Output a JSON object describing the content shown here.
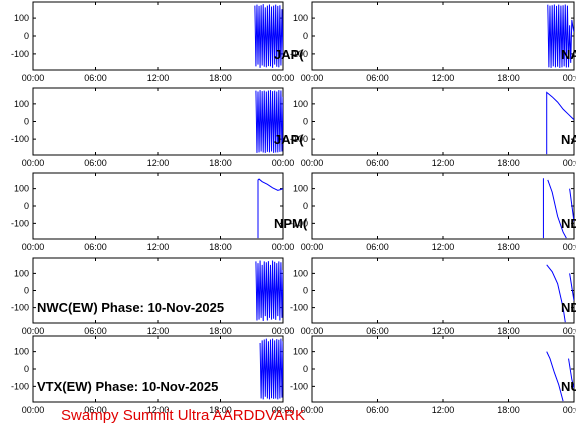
{
  "footer": "Swampy Summit Ultra AARDDVARK",
  "chart_data": [
    {
      "type": "line",
      "title": "JAP(",
      "color": "#0000ff",
      "xlim": [
        0,
        24
      ],
      "ylim": [
        -190,
        190
      ],
      "xticks": [
        {
          "value": 0,
          "label": "00:00"
        },
        {
          "value": 6,
          "label": "06:00"
        },
        {
          "value": 12,
          "label": "12:00"
        },
        {
          "value": 18,
          "label": "18:00"
        },
        {
          "value": 24,
          "label": "00:00"
        }
      ],
      "yticks": [
        -100,
        0,
        100
      ],
      "x": [
        21.3,
        21.4,
        21.5,
        21.6,
        21.7,
        21.8,
        21.9,
        22.0,
        22.1,
        22.2,
        22.3,
        22.4,
        22.5,
        22.6,
        22.7,
        22.8,
        22.9,
        23.0,
        23.1,
        23.2,
        23.3,
        23.4,
        23.5,
        23.6,
        23.7,
        23.8,
        23.9,
        24.0
      ],
      "values": [
        170,
        -170,
        175,
        -160,
        168,
        -178,
        172,
        -165,
        178,
        -172,
        160,
        -175,
        170,
        -168,
        176,
        -170,
        165,
        -178,
        170,
        -160,
        175,
        -172,
        168,
        -175,
        172,
        -165,
        150,
        -120
      ]
    },
    {
      "type": "line",
      "title": "NA",
      "color": "#0000ff",
      "xlim": [
        0,
        24
      ],
      "ylim": [
        -190,
        190
      ],
      "xticks": [
        {
          "value": 0,
          "label": "00:00"
        },
        {
          "value": 6,
          "label": "06:00"
        },
        {
          "value": 12,
          "label": "12:00"
        },
        {
          "value": 18,
          "label": "18:00"
        },
        {
          "value": 24,
          "label": "00:00"
        }
      ],
      "yticks": [
        -100,
        0,
        100
      ],
      "x": [
        21.6,
        21.7,
        21.8,
        21.9,
        22.0,
        22.1,
        22.2,
        22.3,
        22.4,
        22.5,
        22.6,
        22.7,
        22.8,
        22.9,
        23.0,
        23.1,
        23.2,
        23.3,
        23.4,
        23.5,
        23.6,
        23.7,
        23.8,
        23.9,
        24.0
      ],
      "values": [
        175,
        -175,
        170,
        -178,
        172,
        -170,
        176,
        -175,
        168,
        -172,
        175,
        -178,
        170,
        -175,
        172,
        -170,
        176,
        -176,
        170,
        -175,
        60,
        -150,
        90,
        50,
        20
      ]
    },
    {
      "type": "line",
      "title": "JAP(",
      "color": "#0000ff",
      "xlim": [
        0,
        24
      ],
      "ylim": [
        -190,
        190
      ],
      "xticks": [
        {
          "value": 0,
          "label": "00:00"
        },
        {
          "value": 6,
          "label": "06:00"
        },
        {
          "value": 12,
          "label": "12:00"
        },
        {
          "value": 18,
          "label": "18:00"
        },
        {
          "value": 24,
          "label": "00:00"
        }
      ],
      "yticks": [
        -100,
        0,
        100
      ],
      "x": [
        21.4,
        21.5,
        21.6,
        21.7,
        21.8,
        21.9,
        22.0,
        22.1,
        22.2,
        22.3,
        22.4,
        22.5,
        22.6,
        22.7,
        22.8,
        22.9,
        23.0,
        23.1,
        23.2,
        23.3,
        23.4,
        23.5,
        23.6,
        23.7,
        23.8,
        23.9,
        24.0
      ],
      "values": [
        175,
        -178,
        170,
        -175,
        178,
        -170,
        172,
        -176,
        175,
        -178,
        170,
        -172,
        176,
        -175,
        178,
        -170,
        172,
        -178,
        175,
        -176,
        170,
        -175,
        178,
        -172,
        176,
        -170,
        140
      ]
    },
    {
      "type": "line",
      "title": "NA",
      "color": "#0000ff",
      "xlim": [
        0,
        24
      ],
      "ylim": [
        -190,
        190
      ],
      "xticks": [
        {
          "value": 0,
          "label": "00:00"
        },
        {
          "value": 6,
          "label": "06:00"
        },
        {
          "value": 12,
          "label": "12:00"
        },
        {
          "value": 18,
          "label": "18:00"
        },
        {
          "value": 24,
          "label": "00:00"
        }
      ],
      "yticks": [
        -100,
        0,
        100
      ],
      "x": [
        21.5,
        21.5,
        21.6,
        22.0,
        22.5,
        23.0,
        23.5,
        24.0
      ],
      "values": [
        -185,
        165,
        160,
        140,
        110,
        70,
        40,
        10
      ]
    },
    {
      "type": "line",
      "title": "NPM(",
      "color": "#0000ff",
      "xlim": [
        0,
        24
      ],
      "ylim": [
        -190,
        190
      ],
      "xticks": [
        {
          "value": 0,
          "label": "00:00"
        },
        {
          "value": 6,
          "label": "06:00"
        },
        {
          "value": 12,
          "label": "12:00"
        },
        {
          "value": 18,
          "label": "18:00"
        },
        {
          "value": 24,
          "label": "00:00"
        }
      ],
      "yticks": [
        -100,
        0,
        100
      ],
      "x": [
        21.6,
        21.6,
        21.7,
        22.0,
        22.5,
        23.0,
        23.5,
        23.8,
        24.0
      ],
      "values": [
        -185,
        150,
        155,
        140,
        125,
        105,
        90,
        95,
        100
      ]
    },
    {
      "type": "line",
      "title": "ND",
      "color": "#0000ff",
      "xlim": [
        0,
        24
      ],
      "ylim": [
        -190,
        190
      ],
      "xticks": [
        {
          "value": 0,
          "label": "00:00"
        },
        {
          "value": 6,
          "label": "06:00"
        },
        {
          "value": 12,
          "label": "12:00"
        },
        {
          "value": 18,
          "label": "18:00"
        },
        {
          "value": 24,
          "label": "00:00"
        }
      ],
      "yticks": [
        -100,
        0,
        100
      ],
      "x": [
        21.2,
        21.2,
        21.4,
        21.6,
        22.0,
        22.5,
        23.0,
        23.3,
        23.4,
        23.6,
        24.0
      ],
      "values": [
        -185,
        160,
        null,
        150,
        80,
        -60,
        -150,
        -185,
        null,
        100,
        -90
      ]
    },
    {
      "type": "line",
      "title": "NWC(EW) Phase: 10-Nov-2025",
      "color": "#0000ff",
      "xlim": [
        0,
        24
      ],
      "ylim": [
        -190,
        190
      ],
      "xticks": [
        {
          "value": 0,
          "label": "00:00"
        },
        {
          "value": 6,
          "label": "06:00"
        },
        {
          "value": 12,
          "label": "12:00"
        },
        {
          "value": 18,
          "label": "18:00"
        },
        {
          "value": 24,
          "label": "00:00"
        }
      ],
      "yticks": [
        -100,
        0,
        100
      ],
      "x": [
        21.4,
        21.5,
        21.6,
        21.7,
        21.8,
        21.9,
        22.0,
        22.1,
        22.2,
        22.3,
        22.4,
        22.5,
        22.6,
        22.7,
        22.8,
        22.9,
        23.0,
        23.1,
        23.2,
        23.3,
        23.4,
        23.5,
        23.6,
        23.7,
        23.8,
        23.9,
        24.0
      ],
      "values": [
        170,
        -175,
        160,
        -170,
        175,
        -160,
        150,
        -178,
        170,
        -150,
        165,
        -175,
        172,
        -160,
        150,
        -170,
        175,
        -165,
        168,
        -172,
        160,
        -150,
        170,
        -175,
        165,
        -160,
        120
      ]
    },
    {
      "type": "line",
      "title": "ND",
      "color": "#0000ff",
      "xlim": [
        0,
        24
      ],
      "ylim": [
        -190,
        190
      ],
      "xticks": [
        {
          "value": 0,
          "label": "00:00"
        },
        {
          "value": 6,
          "label": "06:00"
        },
        {
          "value": 12,
          "label": "12:00"
        },
        {
          "value": 18,
          "label": "18:00"
        },
        {
          "value": 24,
          "label": "00:00"
        }
      ],
      "yticks": [
        -100,
        0,
        100
      ],
      "x": [
        21.5,
        22.0,
        22.5,
        23.0,
        23.2,
        23.4,
        23.6,
        24.0
      ],
      "values": [
        150,
        110,
        40,
        -100,
        -185,
        null,
        100,
        -60
      ]
    },
    {
      "type": "line",
      "title": "VTX(EW) Phase: 10-Nov-2025",
      "color": "#0000ff",
      "xlim": [
        0,
        24
      ],
      "ylim": [
        -190,
        190
      ],
      "xticks": [
        {
          "value": 0,
          "label": "00:00"
        },
        {
          "value": 6,
          "label": "06:00"
        },
        {
          "value": 12,
          "label": "12:00"
        },
        {
          "value": 18,
          "label": "18:00"
        },
        {
          "value": 24,
          "label": "00:00"
        }
      ],
      "yticks": [
        -100,
        0,
        100
      ],
      "x": [
        21.8,
        21.9,
        22.0,
        22.1,
        22.2,
        22.3,
        22.4,
        22.5,
        22.6,
        22.7,
        22.8,
        22.9,
        23.0,
        23.1,
        23.2,
        23.3,
        23.4,
        23.5,
        23.6,
        23.7,
        23.8,
        23.9,
        24.0
      ],
      "values": [
        150,
        -170,
        165,
        -175,
        170,
        -160,
        175,
        -170,
        160,
        -175,
        170,
        -168,
        175,
        -172,
        165,
        -170,
        172,
        -175,
        168,
        -170,
        175,
        -165,
        160
      ]
    },
    {
      "type": "line",
      "title": "NU",
      "color": "#0000ff",
      "xlim": [
        0,
        24
      ],
      "ylim": [
        -190,
        190
      ],
      "xticks": [
        {
          "value": 0,
          "label": "00:00"
        },
        {
          "value": 6,
          "label": "06:00"
        },
        {
          "value": 12,
          "label": "12:00"
        },
        {
          "value": 18,
          "label": "18:00"
        },
        {
          "value": 24,
          "label": "00:00"
        }
      ],
      "yticks": [
        -100,
        0,
        100
      ],
      "x": [
        21.5,
        21.8,
        22.2,
        22.6,
        23.0,
        23.3,
        23.5,
        23.8,
        24.0
      ],
      "values": [
        100,
        60,
        -20,
        -90,
        -185,
        null,
        60,
        -60,
        -110
      ]
    }
  ]
}
